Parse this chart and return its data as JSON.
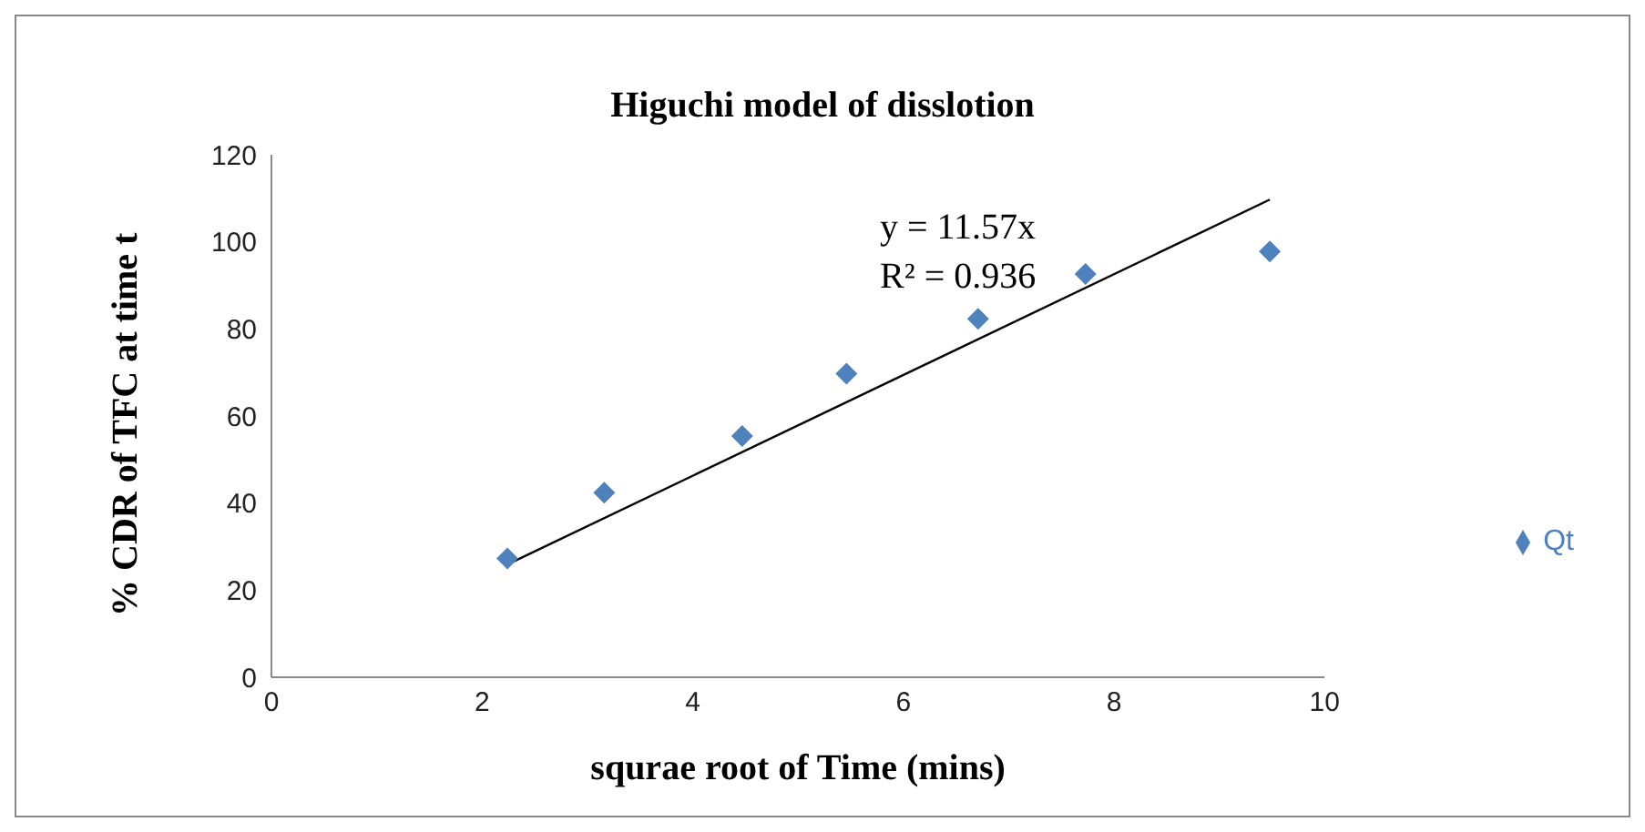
{
  "chart_data": {
    "type": "scatter",
    "title": "Higuchi model of disslotion",
    "xlabel": "squrae root of Time (mins)",
    "ylabel": "% CDR of TFC  at time t",
    "x": [
      2.24,
      3.16,
      4.47,
      5.46,
      6.71,
      7.73,
      9.48
    ],
    "series": [
      {
        "name": "Qt",
        "color": "#4f81bd",
        "marker": "diamond",
        "values": [
          27.3,
          42.4,
          55.4,
          69.7,
          82.3,
          92.6,
          97.8
        ]
      },
      {
        "type": "line",
        "color": "#000000",
        "marker": "none",
        "line_style": "solid",
        "x": [
          2.24,
          9.48
        ],
        "values": [
          25.9,
          109.7
        ]
      }
    ],
    "annotations": [
      "y = 11.57x",
      "R² = 0.936"
    ],
    "xlim": [
      0,
      10
    ],
    "xticks": [
      0,
      2,
      4,
      6,
      8,
      10
    ],
    "ylim": [
      0,
      120
    ],
    "yticks": [
      0,
      20,
      40,
      60,
      80,
      100,
      120
    ],
    "grid": false,
    "legend": "right"
  }
}
